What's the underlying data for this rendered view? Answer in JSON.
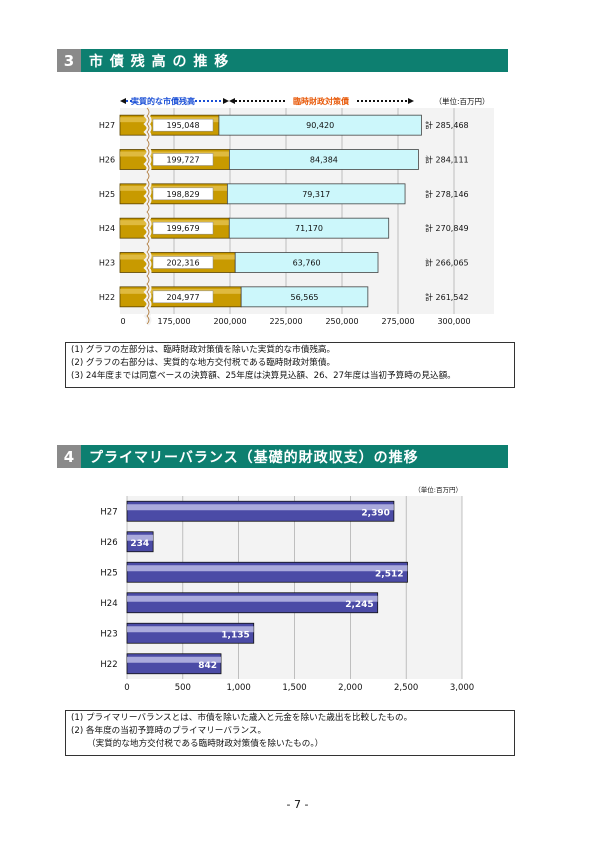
{
  "section3": {
    "number": "3",
    "title": "市 債 残 高 の 推 移",
    "real_label": "実質的な市債残高",
    "special_label": "臨時財政対策債",
    "unit": "（単位:百万円）",
    "zero_label": "0",
    "notes": [
      "(1) グラフの左部分は、臨時財政対策債を除いた実質的な市債残高。",
      "(2) グラフの右部分は、実質的な地方交付税である臨時財政対策債。",
      "(3) 24年度までは同意ベースの決算額、25年度は決算見込額、26、27年度は当初予算時の見込額。"
    ]
  },
  "section4": {
    "number": "4",
    "title": "プライマリーバランス（基礎的財政収支）の推移",
    "unit": "（単位:百万円）",
    "notes": [
      "(1) プライマリーバランスとは、市債を除いた歳入と元金を除いた歳出を比較したもの。",
      "(2) 各年度の当初予算時のプライマリーバランス。",
      "（実質的な地方交付税である臨時財政対策債を除いたもの。）"
    ]
  },
  "chart_data": [
    {
      "type": "bar",
      "orientation": "horizontal",
      "stacked": true,
      "categories": [
        "H27",
        "H26",
        "H25",
        "H24",
        "H23",
        "H22"
      ],
      "series": [
        {
          "name": "実質的な市債残高",
          "values": [
            195048,
            199727,
            198829,
            199679,
            202316,
            204977
          ],
          "labels": [
            "195,048",
            "199,727",
            "198,829",
            "199,679",
            "202,316",
            "204,977"
          ],
          "color": "#c89a00"
        },
        {
          "name": "臨時財政対策債",
          "values": [
            90420,
            84384,
            79317,
            71170,
            63760,
            56565
          ],
          "labels": [
            "90,420",
            "84,384",
            "79,317",
            "71,170",
            "63,760",
            "56,565"
          ],
          "color": "#ccf7fb"
        }
      ],
      "totals": [
        "計 285,468",
        "計 284,111",
        "計 278,146",
        "計 270,849",
        "計 266,065",
        "計 261,542"
      ],
      "xticks": [
        175000,
        200000,
        225000,
        250000,
        275000,
        300000
      ],
      "xtick_labels": [
        "175,000",
        "200,000",
        "225,000",
        "250,000",
        "275,000",
        "300,000"
      ],
      "xlim": [
        150000,
        300000
      ],
      "axis_break": true
    },
    {
      "type": "bar",
      "orientation": "horizontal",
      "categories": [
        "H27",
        "H26",
        "H25",
        "H24",
        "H23",
        "H22"
      ],
      "values": [
        2390,
        234,
        2512,
        2245,
        1135,
        842
      ],
      "labels": [
        "2,390",
        "234",
        "2,512",
        "2,245",
        "1,135",
        "842"
      ],
      "color": "#4b4ba6",
      "xticks": [
        0,
        500,
        1000,
        1500,
        2000,
        2500,
        3000
      ],
      "xtick_labels": [
        "0",
        "500",
        "1,000",
        "1,500",
        "2,000",
        "2,500",
        "3,000"
      ],
      "xlim": [
        0,
        3000
      ]
    }
  ],
  "page_number": "- 7 -"
}
